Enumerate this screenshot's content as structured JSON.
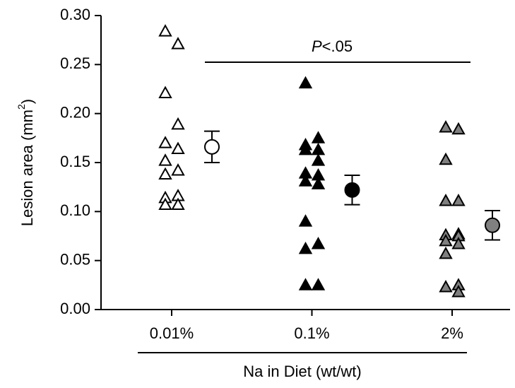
{
  "chart_data": {
    "type": "dot",
    "y_label": [
      "Lesion area (mm",
      "2",
      ")"
    ],
    "x_label": "Na in Diet (wt/wt)",
    "annotation": [
      "P",
      "<.05"
    ],
    "categories": [
      "0.01%",
      "0.1%",
      "2%"
    ],
    "groups": [
      {
        "color": "#ffffff",
        "values": [
          0.284,
          0.271,
          0.221,
          0.189,
          0.17,
          0.164,
          0.152,
          0.142,
          0.138,
          0.116,
          0.114,
          0.107,
          0.107
        ],
        "mean": 0.166,
        "error": 0.016
      },
      {
        "color": "#000000",
        "values": [
          0.231,
          0.175,
          0.168,
          0.163,
          0.163,
          0.152,
          0.139,
          0.137,
          0.131,
          0.128,
          0.09,
          0.067,
          0.062,
          0.025,
          0.025
        ],
        "mean": 0.122,
        "error": 0.015
      },
      {
        "color": "#808080",
        "values": [
          0.186,
          0.184,
          0.153,
          0.111,
          0.111,
          0.077,
          0.076,
          0.075,
          0.07,
          0.067,
          0.057,
          0.025,
          0.023,
          0.018
        ],
        "mean": 0.086,
        "error": 0.015
      }
    ],
    "ylim": [
      0,
      0.3
    ],
    "yticks": [
      {
        "value": 0,
        "label": "0.00"
      },
      {
        "value": 0.05,
        "label": "0.05"
      },
      {
        "value": 0.1,
        "label": "0.10"
      },
      {
        "value": 0.15,
        "label": "0.15"
      },
      {
        "value": 0.2,
        "label": "0.20"
      },
      {
        "value": 0.25,
        "label": "0.25"
      },
      {
        "value": 0.3,
        "label": "0.30"
      }
    ]
  }
}
